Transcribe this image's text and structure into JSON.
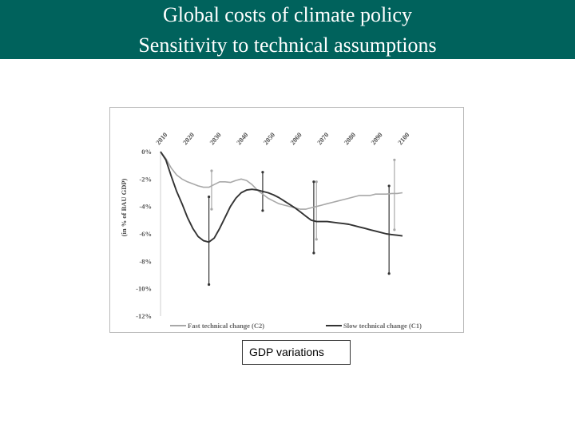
{
  "header": {
    "title_line1": "Global costs of climate policy",
    "title_line2": "Sensitivity to technical assumptions",
    "background_color": "#00625c"
  },
  "caption": {
    "text": "GDP variations"
  },
  "chart_data": {
    "type": "line",
    "title": "",
    "xlabel": "",
    "ylabel": "(in % of BAU GDP)",
    "x_ticks": [
      "2010",
      "2020",
      "2030",
      "2040",
      "2050",
      "2060",
      "2070",
      "2080",
      "2090",
      "2100"
    ],
    "y_ticks": [
      "0%",
      "-2%",
      "-4%",
      "-6%",
      "-8%",
      "-10%",
      "-12%"
    ],
    "xlim": [
      2010,
      2100
    ],
    "ylim": [
      -12,
      0
    ],
    "x_axis_position": "top",
    "grid": false,
    "legend_position": "bottom",
    "series": [
      {
        "name": "Fast technical change (C2)",
        "color": "#a8a8a8",
        "x": [
          2010,
          2012,
          2014,
          2016,
          2018,
          2020,
          2022,
          2024,
          2026,
          2028,
          2030,
          2032,
          2034,
          2036,
          2038,
          2040,
          2042,
          2044,
          2046,
          2048,
          2050,
          2052,
          2054,
          2056,
          2058,
          2060,
          2062,
          2064,
          2066,
          2068,
          2070,
          2072,
          2074,
          2076,
          2078,
          2080,
          2082,
          2084,
          2086,
          2088,
          2090,
          2092,
          2094,
          2096,
          2098,
          2100
        ],
        "values": [
          0,
          -0.5,
          -1.2,
          -1.7,
          -2.0,
          -2.2,
          -2.35,
          -2.5,
          -2.6,
          -2.6,
          -2.4,
          -2.2,
          -2.2,
          -2.25,
          -2.1,
          -2.0,
          -2.1,
          -2.4,
          -2.8,
          -3.1,
          -3.4,
          -3.6,
          -3.8,
          -3.9,
          -4.0,
          -4.1,
          -4.2,
          -4.2,
          -4.1,
          -4.0,
          -3.9,
          -3.8,
          -3.7,
          -3.6,
          -3.5,
          -3.4,
          -3.3,
          -3.2,
          -3.2,
          -3.2,
          -3.1,
          -3.1,
          -3.1,
          -3.05,
          -3.05,
          -3.0
        ]
      },
      {
        "name": "Slow technical change (C1)",
        "color": "#333333",
        "x": [
          2010,
          2012,
          2014,
          2016,
          2018,
          2020,
          2022,
          2024,
          2026,
          2028,
          2030,
          2032,
          2034,
          2036,
          2038,
          2040,
          2042,
          2044,
          2046,
          2048,
          2050,
          2052,
          2054,
          2056,
          2058,
          2060,
          2062,
          2064,
          2066,
          2068,
          2070,
          2072,
          2074,
          2076,
          2078,
          2080,
          2082,
          2084,
          2086,
          2088,
          2090,
          2092,
          2094,
          2096,
          2098,
          2100
        ],
        "values": [
          0,
          -0.6,
          -1.8,
          -2.9,
          -3.8,
          -4.8,
          -5.6,
          -6.2,
          -6.5,
          -6.6,
          -6.3,
          -5.6,
          -4.8,
          -4.0,
          -3.4,
          -3.0,
          -2.8,
          -2.75,
          -2.8,
          -2.9,
          -3.0,
          -3.15,
          -3.35,
          -3.6,
          -3.85,
          -4.1,
          -4.4,
          -4.7,
          -5.0,
          -5.1,
          -5.1,
          -5.1,
          -5.15,
          -5.2,
          -5.25,
          -5.3,
          -5.4,
          -5.5,
          -5.6,
          -5.7,
          -5.8,
          -5.9,
          -6.0,
          -6.05,
          -6.1,
          -6.15
        ]
      }
    ],
    "error_bars": [
      {
        "x": 2028,
        "low": -9.7,
        "high": -3.3,
        "color": "#333333"
      },
      {
        "x": 2029,
        "low": -4.2,
        "high": -1.4,
        "color": "#a8a8a8"
      },
      {
        "x": 2048,
        "low": -4.3,
        "high": -1.5,
        "color": "#333333"
      },
      {
        "x": 2067,
        "low": -7.4,
        "high": -2.2,
        "color": "#333333"
      },
      {
        "x": 2068,
        "low": -6.4,
        "high": -2.2,
        "color": "#a8a8a8"
      },
      {
        "x": 2095,
        "low": -8.9,
        "high": -2.5,
        "color": "#333333"
      },
      {
        "x": 2097,
        "low": -5.7,
        "high": -0.6,
        "color": "#a8a8a8"
      }
    ]
  }
}
